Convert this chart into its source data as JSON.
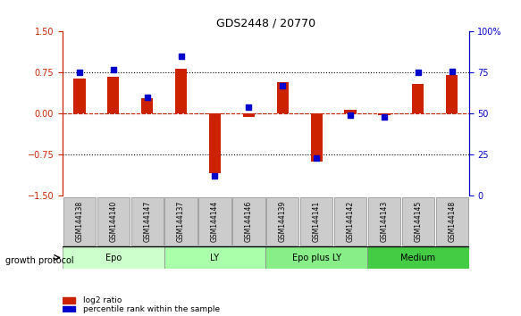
{
  "title": "GDS2448 / 20770",
  "samples": [
    "GSM144138",
    "GSM144140",
    "GSM144147",
    "GSM144137",
    "GSM144144",
    "GSM144146",
    "GSM144139",
    "GSM144141",
    "GSM144142",
    "GSM144143",
    "GSM144145",
    "GSM144148"
  ],
  "log2_ratio": [
    0.65,
    0.68,
    0.28,
    0.83,
    -1.08,
    -0.05,
    0.58,
    -0.87,
    0.07,
    -0.02,
    0.55,
    0.7
  ],
  "percentile_rank": [
    75,
    77,
    60,
    85,
    12,
    54,
    67,
    23,
    49,
    48,
    75,
    76
  ],
  "bar_color": "#cc2200",
  "dot_color": "#0000cc",
  "groups": [
    {
      "label": "Epo",
      "start": 0,
      "end": 3,
      "color": "#ccffcc"
    },
    {
      "label": "LY",
      "start": 3,
      "end": 6,
      "color": "#aaffaa"
    },
    {
      "label": "Epo plus LY",
      "start": 6,
      "end": 9,
      "color": "#88ee88"
    },
    {
      "label": "Medium",
      "start": 9,
      "end": 12,
      "color": "#44cc44"
    }
  ],
  "ylim_left": [
    -1.5,
    1.5
  ],
  "ylim_right": [
    0,
    100
  ],
  "yticks_left": [
    -1.5,
    -0.75,
    0,
    0.75,
    1.5
  ],
  "yticks_right": [
    0,
    25,
    50,
    75,
    100
  ],
  "hlines": [
    0.75,
    0,
    -0.75
  ],
  "legend_log2_label": "log2 ratio",
  "legend_pct_label": "percentile rank within the sample",
  "growth_protocol_label": "growth protocol"
}
